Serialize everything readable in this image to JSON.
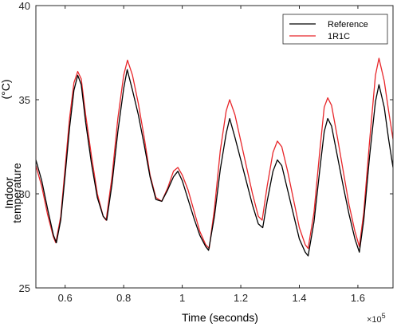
{
  "chart_data": {
    "type": "line",
    "xlabel": "Time (seconds)",
    "ylabel_line1": "Indoor",
    "ylabel_line2": "temperature",
    "ylabel_unit": "(°C)",
    "x_multiplier": "×10",
    "x_multiplier_exp": "5",
    "xlim": [
      0.5,
      1.72
    ],
    "ylim": [
      25,
      40
    ],
    "xticks": [
      {
        "value": 0.6,
        "label": "0.6"
      },
      {
        "value": 0.8,
        "label": "0.8"
      },
      {
        "value": 1.0,
        "label": "1"
      },
      {
        "value": 1.2,
        "label": "1.2"
      },
      {
        "value": 1.4,
        "label": "1.4"
      },
      {
        "value": 1.6,
        "label": "1.6"
      }
    ],
    "yticks": [
      {
        "value": 25,
        "label": "25"
      },
      {
        "value": 30,
        "label": "30"
      },
      {
        "value": 35,
        "label": "35"
      },
      {
        "value": 40,
        "label": "40"
      }
    ],
    "grid": false,
    "legend_position": "top-right",
    "colors": {
      "reference": "#000000",
      "model": "#e8262a"
    },
    "series": [
      {
        "name": "Reference",
        "color": "#000000",
        "points": [
          [
            0.5,
            31.8
          ],
          [
            0.52,
            30.7
          ],
          [
            0.54,
            29.2
          ],
          [
            0.56,
            27.8
          ],
          [
            0.57,
            27.4
          ],
          [
            0.585,
            28.6
          ],
          [
            0.6,
            31.0
          ],
          [
            0.615,
            33.5
          ],
          [
            0.63,
            35.5
          ],
          [
            0.643,
            36.3
          ],
          [
            0.655,
            35.8
          ],
          [
            0.67,
            33.8
          ],
          [
            0.69,
            31.6
          ],
          [
            0.71,
            29.8
          ],
          [
            0.73,
            28.8
          ],
          [
            0.742,
            28.6
          ],
          [
            0.76,
            30.5
          ],
          [
            0.78,
            33.3
          ],
          [
            0.8,
            35.6
          ],
          [
            0.812,
            36.6
          ],
          [
            0.83,
            35.5
          ],
          [
            0.85,
            34.2
          ],
          [
            0.87,
            32.6
          ],
          [
            0.89,
            30.9
          ],
          [
            0.91,
            29.7
          ],
          [
            0.93,
            29.6
          ],
          [
            0.95,
            30.2
          ],
          [
            0.97,
            30.9
          ],
          [
            0.985,
            31.2
          ],
          [
            1.0,
            30.7
          ],
          [
            1.02,
            29.7
          ],
          [
            1.04,
            28.7
          ],
          [
            1.06,
            27.8
          ],
          [
            1.08,
            27.2
          ],
          [
            1.09,
            27.0
          ],
          [
            1.11,
            28.8
          ],
          [
            1.13,
            31.3
          ],
          [
            1.15,
            33.2
          ],
          [
            1.162,
            34.0
          ],
          [
            1.18,
            33.0
          ],
          [
            1.2,
            31.8
          ],
          [
            1.22,
            30.6
          ],
          [
            1.24,
            29.4
          ],
          [
            1.26,
            28.4
          ],
          [
            1.275,
            28.2
          ],
          [
            1.29,
            29.6
          ],
          [
            1.31,
            31.2
          ],
          [
            1.325,
            31.8
          ],
          [
            1.34,
            31.5
          ],
          [
            1.36,
            30.2
          ],
          [
            1.38,
            28.9
          ],
          [
            1.4,
            27.6
          ],
          [
            1.42,
            26.9
          ],
          [
            1.43,
            26.7
          ],
          [
            1.45,
            28.5
          ],
          [
            1.47,
            31.3
          ],
          [
            1.485,
            33.3
          ],
          [
            1.497,
            34.0
          ],
          [
            1.51,
            33.6
          ],
          [
            1.53,
            32.0
          ],
          [
            1.55,
            30.4
          ],
          [
            1.57,
            28.9
          ],
          [
            1.59,
            27.6
          ],
          [
            1.605,
            26.9
          ],
          [
            1.62,
            28.6
          ],
          [
            1.64,
            32.0
          ],
          [
            1.66,
            34.9
          ],
          [
            1.672,
            35.8
          ],
          [
            1.69,
            34.6
          ],
          [
            1.705,
            32.9
          ],
          [
            1.72,
            31.4
          ]
        ]
      },
      {
        "name": "1R1C",
        "color": "#e8262a",
        "points": [
          [
            0.5,
            31.5
          ],
          [
            0.52,
            30.4
          ],
          [
            0.54,
            28.9
          ],
          [
            0.56,
            27.7
          ],
          [
            0.568,
            27.4
          ],
          [
            0.585,
            28.8
          ],
          [
            0.6,
            31.4
          ],
          [
            0.615,
            34.0
          ],
          [
            0.63,
            35.9
          ],
          [
            0.643,
            36.5
          ],
          [
            0.655,
            36.1
          ],
          [
            0.67,
            34.2
          ],
          [
            0.69,
            32.0
          ],
          [
            0.71,
            30.0
          ],
          [
            0.73,
            28.8
          ],
          [
            0.74,
            28.6
          ],
          [
            0.76,
            30.9
          ],
          [
            0.78,
            34.0
          ],
          [
            0.8,
            36.3
          ],
          [
            0.813,
            37.1
          ],
          [
            0.83,
            36.3
          ],
          [
            0.85,
            34.8
          ],
          [
            0.87,
            33.0
          ],
          [
            0.89,
            31.0
          ],
          [
            0.91,
            29.8
          ],
          [
            0.93,
            29.6
          ],
          [
            0.95,
            30.3
          ],
          [
            0.97,
            31.2
          ],
          [
            0.985,
            31.4
          ],
          [
            1.0,
            31.0
          ],
          [
            1.02,
            30.2
          ],
          [
            1.04,
            29.1
          ],
          [
            1.06,
            28.0
          ],
          [
            1.08,
            27.3
          ],
          [
            1.092,
            27.1
          ],
          [
            1.11,
            29.2
          ],
          [
            1.13,
            32.3
          ],
          [
            1.15,
            34.4
          ],
          [
            1.162,
            35.0
          ],
          [
            1.18,
            34.2
          ],
          [
            1.2,
            32.8
          ],
          [
            1.22,
            31.4
          ],
          [
            1.24,
            30.0
          ],
          [
            1.26,
            28.8
          ],
          [
            1.273,
            28.6
          ],
          [
            1.29,
            30.4
          ],
          [
            1.31,
            32.2
          ],
          [
            1.325,
            32.8
          ],
          [
            1.34,
            32.5
          ],
          [
            1.36,
            31.2
          ],
          [
            1.38,
            29.7
          ],
          [
            1.4,
            28.2
          ],
          [
            1.42,
            27.3
          ],
          [
            1.43,
            27.1
          ],
          [
            1.45,
            29.0
          ],
          [
            1.47,
            32.3
          ],
          [
            1.485,
            34.6
          ],
          [
            1.497,
            35.1
          ],
          [
            1.51,
            34.7
          ],
          [
            1.53,
            33.0
          ],
          [
            1.55,
            31.2
          ],
          [
            1.57,
            29.4
          ],
          [
            1.59,
            28.0
          ],
          [
            1.605,
            27.2
          ],
          [
            1.62,
            29.0
          ],
          [
            1.64,
            32.8
          ],
          [
            1.66,
            36.3
          ],
          [
            1.672,
            37.2
          ],
          [
            1.69,
            36.0
          ],
          [
            1.705,
            34.4
          ],
          [
            1.72,
            32.9
          ]
        ]
      }
    ]
  }
}
